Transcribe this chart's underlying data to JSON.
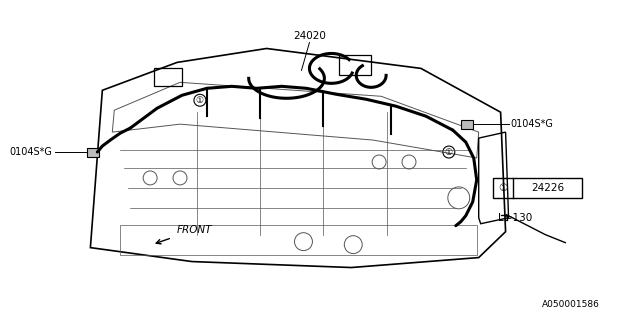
{
  "bg_color": "#ffffff",
  "line_color": "#000000",
  "thick_wire_color": "#000000",
  "thin_line_color": "#555555",
  "label_24020": "24020",
  "label_0104SG_left": "0104S*G",
  "label_0104SG_right": "0104S*G",
  "label_24226": "24226",
  "label_L130": "L=130",
  "label_front": "FRONT",
  "label_partno": "A050001586",
  "circle_symbol": "①",
  "figsize": [
    6.4,
    3.2
  ],
  "dpi": 100
}
